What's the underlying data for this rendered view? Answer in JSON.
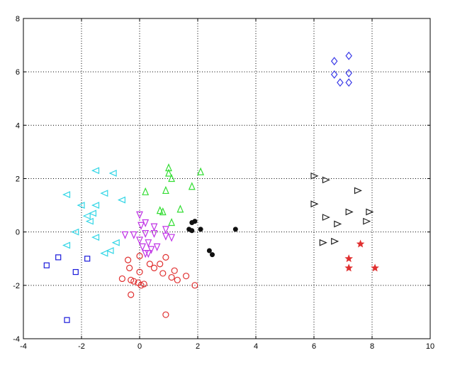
{
  "chart_data": {
    "type": "scatter",
    "title": "",
    "xlabel": "",
    "ylabel": "",
    "xlim": [
      -4,
      10
    ],
    "ylim": [
      -4,
      8
    ],
    "xticks": [
      -4,
      -2,
      0,
      2,
      4,
      6,
      8,
      10
    ],
    "yticks": [
      -4,
      -2,
      0,
      2,
      4,
      6,
      8
    ],
    "xtick_labels": [
      "-4",
      "-2",
      "0",
      "2",
      "4",
      "6",
      "8",
      "10"
    ],
    "ytick_labels": [
      "-4",
      "-2",
      "0",
      "2",
      "4",
      "6",
      "8"
    ],
    "grid": true,
    "series": [
      {
        "marker": "square",
        "color": "#1a1adb",
        "points": [
          [
            -3.2,
            -1.25
          ],
          [
            -2.8,
            -0.95
          ],
          [
            -2.2,
            -1.5
          ],
          [
            -1.8,
            -1.0
          ],
          [
            -2.5,
            -3.3
          ]
        ]
      },
      {
        "marker": "triangle-left",
        "color": "#33d6e6",
        "points": [
          [
            -1.5,
            2.3
          ],
          [
            -0.9,
            2.2
          ],
          [
            -2.5,
            1.4
          ],
          [
            -1.2,
            1.45
          ],
          [
            -2.0,
            1.0
          ],
          [
            -1.5,
            1.0
          ],
          [
            -0.6,
            1.2
          ],
          [
            -1.8,
            0.6
          ],
          [
            -1.7,
            0.4
          ],
          [
            -2.2,
            0.0
          ],
          [
            -1.5,
            -0.2
          ],
          [
            -0.8,
            -0.4
          ],
          [
            -2.5,
            -0.5
          ],
          [
            -1.0,
            -0.7
          ],
          [
            -1.2,
            -0.8
          ],
          [
            -1.6,
            0.7
          ]
        ]
      },
      {
        "marker": "triangle-up",
        "color": "#33dd33",
        "points": [
          [
            1.0,
            2.4
          ],
          [
            1.0,
            2.2
          ],
          [
            1.1,
            2.0
          ],
          [
            2.1,
            2.25
          ],
          [
            1.8,
            1.7
          ],
          [
            0.2,
            1.5
          ],
          [
            0.9,
            1.55
          ],
          [
            0.7,
            0.8
          ],
          [
            0.8,
            0.75
          ],
          [
            1.4,
            0.85
          ],
          [
            1.1,
            0.35
          ]
        ]
      },
      {
        "marker": "triangle-down",
        "color": "#c033e6",
        "points": [
          [
            0.0,
            0.65
          ],
          [
            0.2,
            0.35
          ],
          [
            0.5,
            0.2
          ],
          [
            0.9,
            0.1
          ],
          [
            -0.5,
            -0.1
          ],
          [
            -0.2,
            -0.1
          ],
          [
            0.2,
            -0.05
          ],
          [
            0.5,
            -0.05
          ],
          [
            0.9,
            -0.15
          ],
          [
            1.1,
            -0.2
          ],
          [
            0.0,
            -0.3
          ],
          [
            0.3,
            -0.4
          ],
          [
            0.1,
            -0.55
          ],
          [
            0.4,
            -0.65
          ],
          [
            0.6,
            -0.55
          ],
          [
            0.2,
            -0.8
          ],
          [
            0.3,
            -0.8
          ],
          [
            0.05,
            0.25
          ]
        ]
      },
      {
        "marker": "circle",
        "color": "#e03030",
        "points": [
          [
            0.0,
            -0.9
          ],
          [
            -0.4,
            -1.05
          ],
          [
            0.35,
            -1.2
          ],
          [
            0.5,
            -1.35
          ],
          [
            0.9,
            -0.95
          ],
          [
            -0.35,
            -1.35
          ],
          [
            0.0,
            -1.5
          ],
          [
            1.2,
            -1.45
          ],
          [
            1.1,
            -1.7
          ],
          [
            0.8,
            -1.55
          ],
          [
            -0.6,
            -1.75
          ],
          [
            -0.3,
            -1.8
          ],
          [
            -0.2,
            -1.85
          ],
          [
            -0.05,
            -1.9
          ],
          [
            0.05,
            -2.0
          ],
          [
            0.15,
            -1.95
          ],
          [
            1.6,
            -1.65
          ],
          [
            1.3,
            -1.8
          ],
          [
            1.9,
            -2.0
          ],
          [
            -0.3,
            -2.35
          ],
          [
            0.9,
            -3.1
          ],
          [
            0.7,
            -1.2
          ]
        ]
      },
      {
        "marker": "dot",
        "color": "#111111",
        "points": [
          [
            1.8,
            0.35
          ],
          [
            1.9,
            0.4
          ],
          [
            1.7,
            0.1
          ],
          [
            1.8,
            0.05
          ],
          [
            2.1,
            0.1
          ],
          [
            3.3,
            0.1
          ],
          [
            2.4,
            -0.7
          ],
          [
            2.5,
            -0.85
          ]
        ]
      },
      {
        "marker": "diamond",
        "color": "#3a3ae8",
        "points": [
          [
            6.7,
            6.4
          ],
          [
            7.2,
            6.6
          ],
          [
            6.7,
            5.9
          ],
          [
            7.2,
            5.95
          ],
          [
            6.9,
            5.6
          ],
          [
            7.2,
            5.6
          ]
        ]
      },
      {
        "marker": "triangle-right",
        "color": "#222222",
        "points": [
          [
            6.0,
            2.1
          ],
          [
            6.4,
            1.95
          ],
          [
            7.5,
            1.55
          ],
          [
            6.0,
            1.05
          ],
          [
            6.4,
            0.55
          ],
          [
            6.8,
            0.3
          ],
          [
            7.2,
            0.75
          ],
          [
            7.9,
            0.75
          ],
          [
            7.8,
            0.4
          ],
          [
            6.3,
            -0.4
          ],
          [
            6.7,
            -0.35
          ]
        ]
      },
      {
        "marker": "star",
        "color": "#e03030",
        "points": [
          [
            7.6,
            -0.45
          ],
          [
            7.2,
            -1.0
          ],
          [
            7.2,
            -1.35
          ],
          [
            8.1,
            -1.35
          ]
        ]
      }
    ]
  }
}
